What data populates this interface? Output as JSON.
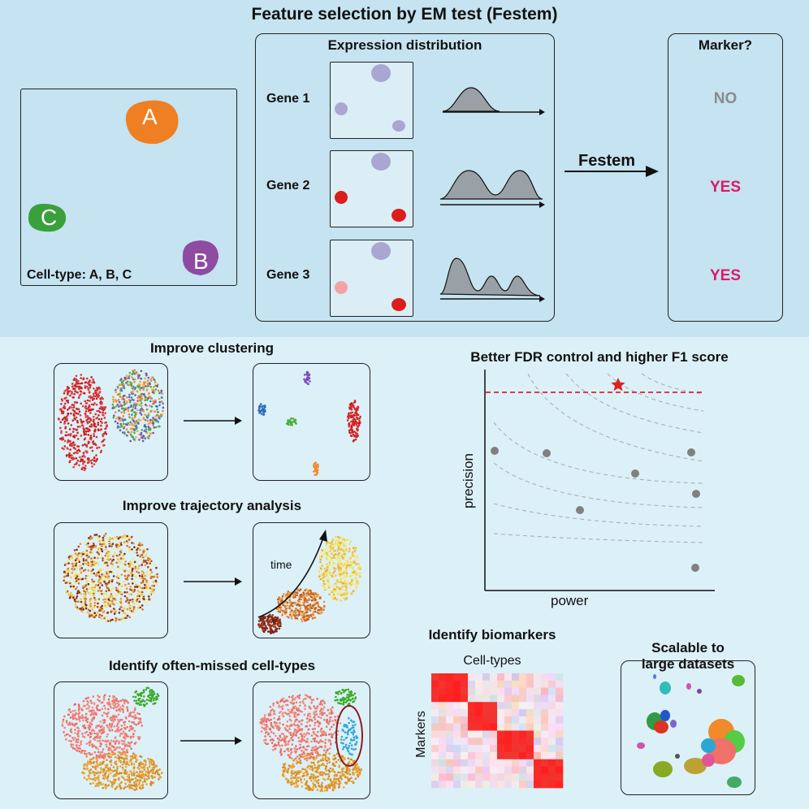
{
  "header": {
    "title": "Feature selection by EM test (Festem)"
  },
  "celltype_panel": {
    "caption": "Cell-type: A, B, C",
    "clusters": [
      "A",
      "B",
      "C"
    ]
  },
  "expression": {
    "title": "Expression distribution",
    "genes": [
      "Gene 1",
      "Gene 2",
      "Gene 3"
    ],
    "arrow_label": "Festem"
  },
  "marker": {
    "title": "Marker?",
    "answers": [
      "NO",
      "YES",
      "YES"
    ]
  },
  "clustering": {
    "title": "Improve clustering"
  },
  "trajectory": {
    "title": "Improve trajectory analysis",
    "time_label": "time"
  },
  "missed": {
    "title": "Identify often-missed cell-types"
  },
  "fdr": {
    "title": "Better FDR control and higher F1 score",
    "xlabel": "power",
    "ylabel": "precision"
  },
  "biomarkers": {
    "title": "Identify biomarkers",
    "xlabel": "Cell-types",
    "ylabel": "Markers"
  },
  "scalable": {
    "title_line1": "Scalable to",
    "title_line2": "large datasets"
  },
  "colors": {
    "top_bg": "#c5e3f0",
    "bottom_bg": "#dcf0f8",
    "yes": "#d81b6a",
    "no": "#8a8a8a",
    "celltype_A": "#ee7f23",
    "celltype_B": "#8e4ba3",
    "celltype_C": "#3aa03c"
  }
}
